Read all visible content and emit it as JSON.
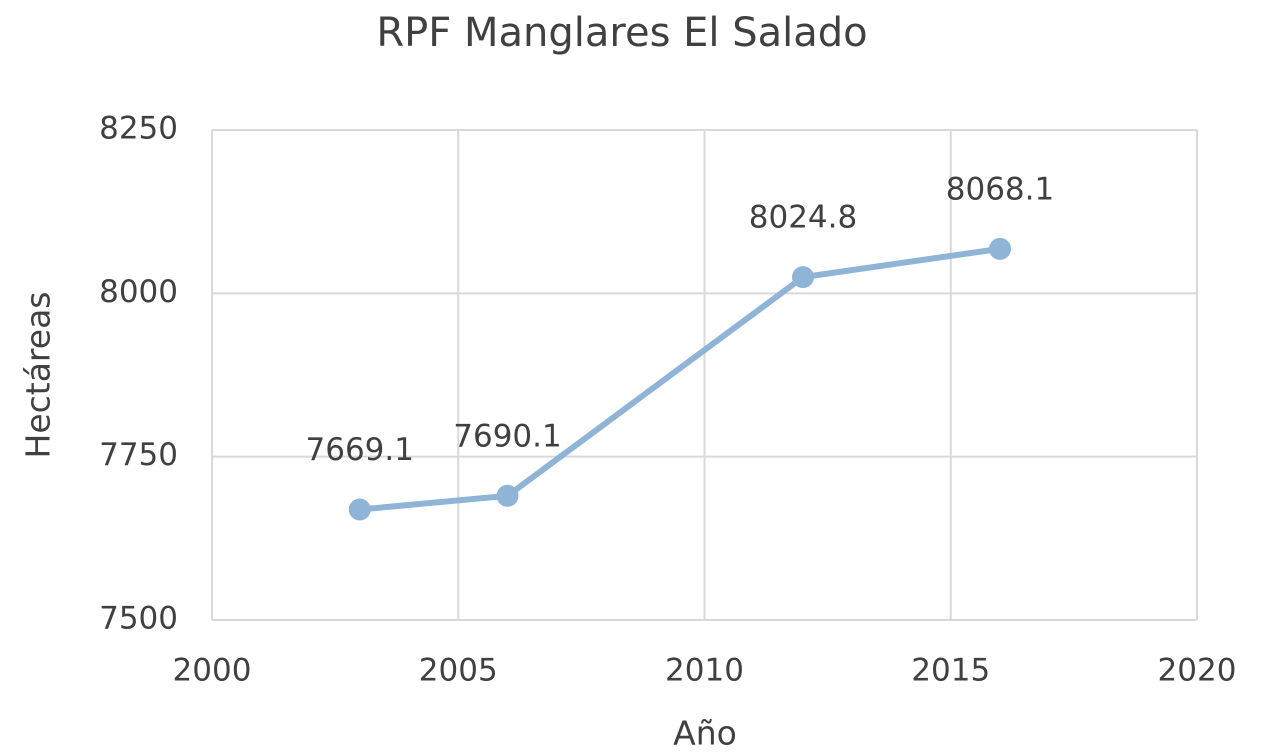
{
  "chart_data": {
    "type": "line",
    "title": "RPF Manglares El Salado",
    "x_label": "Año",
    "y_label": "Hectáreas",
    "x": [
      2003,
      2006,
      2012,
      2016
    ],
    "series": [
      {
        "name": "Hectáreas",
        "color": "#8fb4d6",
        "values": [
          7669.1,
          7690.1,
          8024.8,
          8068.1
        ]
      }
    ],
    "xlim": [
      2000,
      2020
    ],
    "xticks": [
      2000,
      2005,
      2010,
      2015,
      2020
    ],
    "ylim": [
      7500,
      8250
    ],
    "yticks": [
      7500,
      7750,
      8000,
      8250
    ],
    "grid": true
  }
}
